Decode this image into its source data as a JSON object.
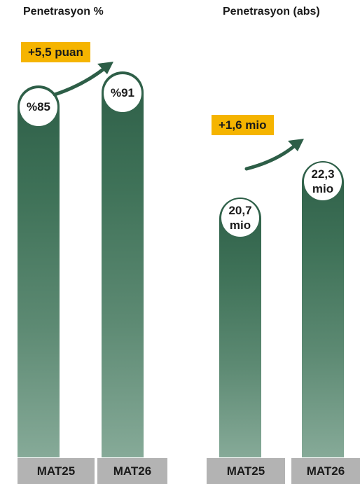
{
  "chart_data": [
    {
      "type": "bar",
      "title": "Penetrasyon %",
      "categories": [
        "MAT25",
        "MAT26"
      ],
      "values": [
        85,
        91
      ],
      "value_labels": [
        "%85",
        "%91"
      ],
      "delta_label": "+5,5 puan",
      "colors": {
        "bar_top": "#2d5e47",
        "bar_bottom": "#86aa98",
        "delta_box": "#f5b400",
        "axis_label_box": "#b3b3b3"
      }
    },
    {
      "type": "bar",
      "title": "Penetrasyon (abs)",
      "categories": [
        "MAT25",
        "MAT26"
      ],
      "values": [
        20.7,
        22.3
      ],
      "value_labels": [
        [
          "20,7",
          "mio"
        ],
        [
          "22,3",
          "mio"
        ]
      ],
      "delta_label": "+1,6 mio",
      "colors": {
        "bar_top": "#2d5e47",
        "bar_bottom": "#86aa98",
        "delta_box": "#f5b400",
        "axis_label_box": "#b3b3b3"
      }
    }
  ]
}
